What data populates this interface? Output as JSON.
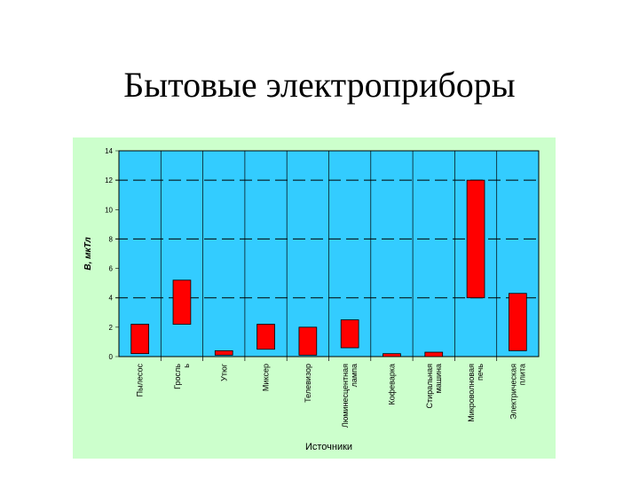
{
  "slide": {
    "title": "Бытовые электроприборы"
  },
  "chart_data": {
    "type": "bar",
    "title": "",
    "xlabel": "Источники",
    "ylabel": "В, мкТл",
    "ylim": [
      0,
      14
    ],
    "yticks": [
      "0",
      "2",
      "4",
      "6",
      "8",
      "10",
      "12",
      "14"
    ],
    "grid": "dashed horizontal major lines",
    "categories": [
      "Пылесос",
      "Гросль\nь",
      "Утюг",
      "Миксер",
      "Телевизор",
      "Люминесцентная\nлампа",
      "Кофеварка",
      "Стиральная\nмашина",
      "Микроволновая\nпечь",
      "Электрическая\nплита"
    ],
    "series": [
      {
        "ranges": [
          [
            0.2,
            2.2
          ],
          [
            2.2,
            5.2
          ],
          [
            0.1,
            0.4
          ],
          [
            0.5,
            2.2
          ],
          [
            0.1,
            2.0
          ],
          [
            0.6,
            2.5
          ],
          [
            0.0,
            0.2
          ],
          [
            0.0,
            0.3
          ],
          [
            4.0,
            12.0
          ],
          [
            0.4,
            4.3
          ]
        ]
      }
    ],
    "colors": {
      "plot_bg": "#33ccff",
      "outer_bg": "#ccffcc",
      "bar": "#ff0000"
    }
  }
}
